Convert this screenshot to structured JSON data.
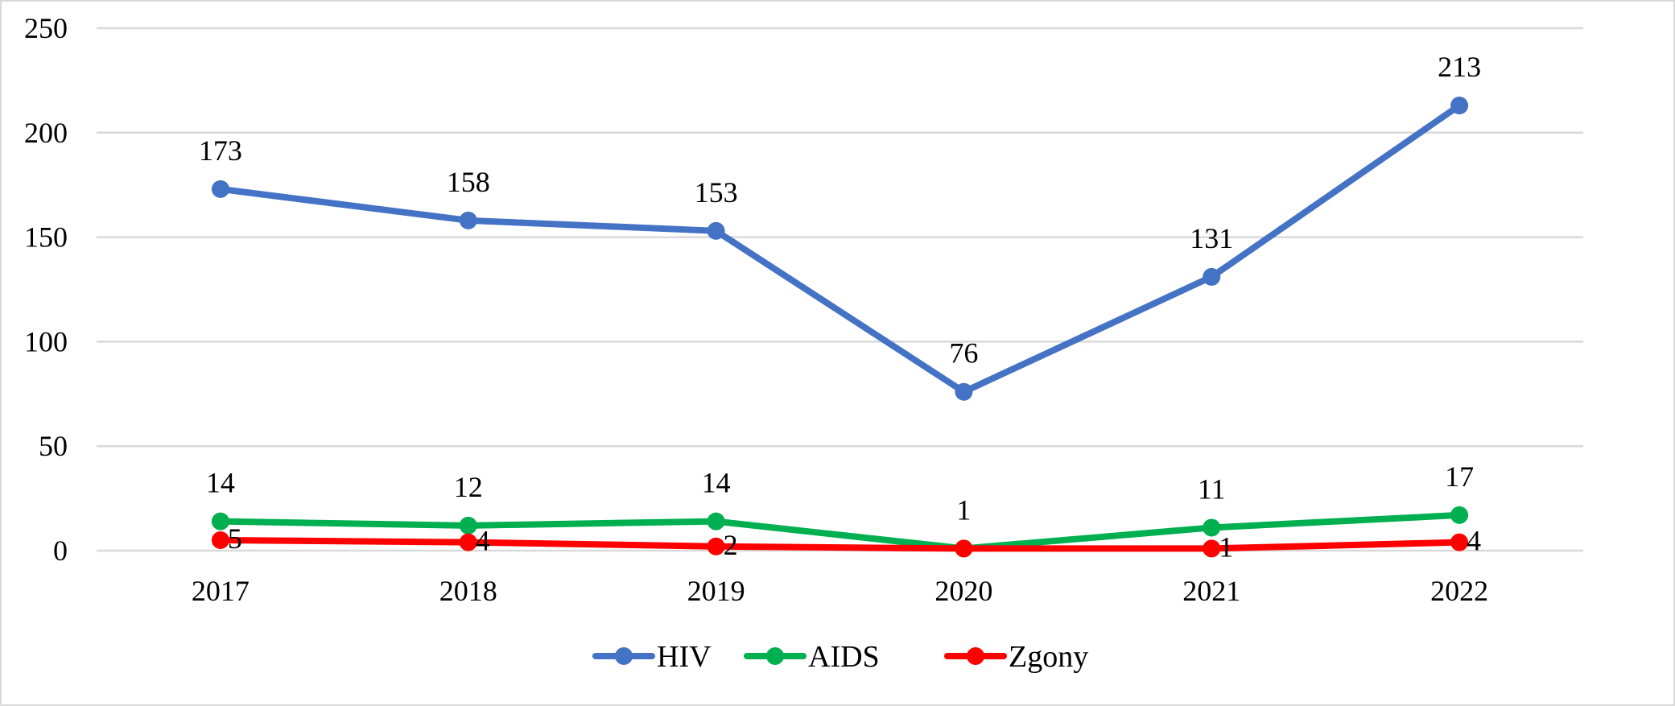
{
  "chart_data": {
    "type": "line",
    "title": "",
    "xlabel": "",
    "ylabel": "",
    "categories": [
      "2017",
      "2018",
      "2019",
      "2020",
      "2021",
      "2022"
    ],
    "ylim": [
      0,
      250
    ],
    "yticks": [
      0,
      50,
      100,
      150,
      200,
      250
    ],
    "grid": true,
    "legend_position": "bottom",
    "series": [
      {
        "name": "HIV",
        "color": "#4472c4",
        "values": [
          173,
          158,
          153,
          76,
          131,
          213
        ],
        "labels": [
          "173",
          "158",
          "153",
          "76",
          "131",
          "213"
        ]
      },
      {
        "name": "AIDS",
        "color": "#00b050",
        "values": [
          14,
          12,
          14,
          1,
          11,
          17
        ],
        "labels": [
          "14",
          "12",
          "14",
          "1",
          "11",
          "17"
        ]
      },
      {
        "name": "Zgony",
        "color": "#ff0000",
        "values": [
          5,
          4,
          2,
          1,
          1,
          4
        ],
        "labels": [
          "5",
          "4",
          "2",
          "",
          "1",
          "4"
        ]
      }
    ]
  }
}
